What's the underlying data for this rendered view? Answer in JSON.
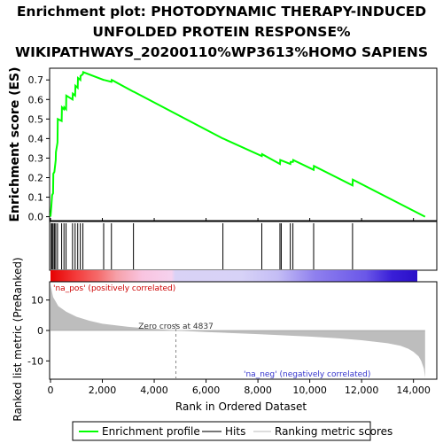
{
  "chart_data": {
    "type": "line",
    "title_lines": [
      "Enrichment plot: PHOTODYNAMIC THERAPY-INDUCED",
      "UNFOLDED PROTEIN RESPONSE%",
      "WIKIPATHWAYS_20200110%WP3613%HOMO SAPIENS"
    ],
    "es_ylabel": "Enrichment score (ES)",
    "metric_ylabel": "Ranked list metric (PreRanked)",
    "xlabel": "Rank in Ordered Dataset",
    "xlim": [
      0,
      14900
    ],
    "es_ylim": [
      -0.02,
      0.76
    ],
    "metric_ylim": [
      -16,
      16
    ],
    "x_ticks": [
      0,
      2000,
      4000,
      6000,
      8000,
      10000,
      12000,
      14000
    ],
    "x_tick_labels": [
      "0",
      "2,000",
      "4,000",
      "6,000",
      "8,000",
      "10,000",
      "12,000",
      "14,000"
    ],
    "es_ticks": [
      0.0,
      0.1,
      0.2,
      0.3,
      0.4,
      0.5,
      0.6,
      0.7
    ],
    "es_tick_labels": [
      "0.0",
      "0.1",
      "0.2",
      "0.3",
      "0.4",
      "0.5",
      "0.6",
      "0.7"
    ],
    "metric_ticks": [
      10,
      0,
      -10
    ],
    "metric_tick_labels": [
      "10",
      "0",
      "-10"
    ],
    "series": [
      {
        "name": "Enrichment profile",
        "color": "#00ff00",
        "x": [
          0,
          30,
          60,
          100,
          110,
          150,
          200,
          210,
          270,
          280,
          430,
          440,
          520,
          530,
          600,
          610,
          850,
          860,
          950,
          960,
          1050,
          1060,
          1150,
          1160,
          1250,
          1260,
          2050,
          2060,
          2350,
          2360,
          3200,
          3210,
          6650,
          6660,
          8150,
          8160,
          8850,
          8860,
          9250,
          9260,
          9350,
          9360,
          10150,
          10160,
          11650,
          11660,
          14450
        ],
        "y": [
          0.0,
          0.05,
          0.11,
          0.12,
          0.22,
          0.23,
          0.29,
          0.33,
          0.38,
          0.5,
          0.49,
          0.56,
          0.55,
          0.56,
          0.55,
          0.62,
          0.6,
          0.63,
          0.62,
          0.67,
          0.66,
          0.71,
          0.7,
          0.72,
          0.73,
          0.74,
          0.7,
          0.7,
          0.69,
          0.7,
          0.64,
          0.64,
          0.4,
          0.4,
          0.31,
          0.32,
          0.27,
          0.29,
          0.27,
          0.28,
          0.28,
          0.29,
          0.24,
          0.26,
          0.16,
          0.19,
          0.0
        ]
      }
    ],
    "hits": [
      30,
      60,
      100,
      150,
      200,
      270,
      430,
      520,
      600,
      850,
      950,
      1050,
      1150,
      1250,
      2050,
      2350,
      3200,
      6650,
      8150,
      8850,
      8900,
      9250,
      9350,
      10150,
      11650
    ],
    "metric_curve": {
      "x": [
        0,
        100,
        300,
        600,
        1000,
        1500,
        2000,
        3000,
        4000,
        4837,
        6000,
        8000,
        10000,
        11000,
        12000,
        13000,
        13500,
        13800,
        14000,
        14200,
        14300,
        14400,
        14450
      ],
      "y": [
        15,
        11,
        8,
        6.2,
        4.5,
        3.2,
        2.2,
        1.2,
        0.5,
        0.0,
        -0.5,
        -1.2,
        -2.0,
        -2.5,
        -3.2,
        -4.2,
        -5.0,
        -6.0,
        -7.0,
        -8.5,
        -10,
        -12.5,
        -15.5
      ]
    },
    "zero_cross_rank": 4837,
    "annotations": {
      "zero_cross": "Zero cross at 4837",
      "na_pos": "'na_pos' (positively correlated)",
      "na_neg": "'na_neg' (negatively correlated)"
    },
    "colors": {
      "es_line": "#00ff00",
      "hit": "#000000",
      "metric_fill": "#bdbdbd",
      "na_pos": "#cc0000",
      "na_neg": "#3333cc",
      "zero_line": "#888888"
    },
    "legend": [
      {
        "label": "Enrichment profile",
        "kind": "line",
        "color": "#00ff00"
      },
      {
        "label": "Hits",
        "kind": "line",
        "color": "#777777"
      },
      {
        "label": "Ranking metric scores",
        "kind": "line",
        "color": "#dddddd"
      }
    ],
    "legend_position": "bottom"
  }
}
